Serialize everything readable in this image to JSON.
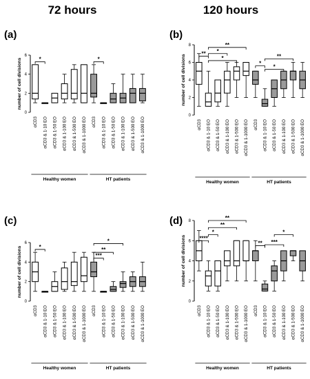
{
  "column_headers": [
    "72 hours",
    "120 hours"
  ],
  "chart_data": [
    {
      "type": "box",
      "panel": "(a)",
      "ylabel": "number of cell divisions",
      "ylim": [
        0,
        6
      ],
      "yticks": [
        0,
        2,
        4,
        6
      ],
      "categories": [
        "αCD3",
        "αCD3 & 1-10 EO",
        "αCD3 & 1-50 EO",
        "αCD3 & 1-100 EO",
        "αCD3 & 1-500 EO",
        "αCD3 & 1-1000 EO",
        "αCD3",
        "αCD3 & 1-10 EO",
        "αCD3 & 1-50 EO",
        "αCD3 & 1-100 EO",
        "αCD3 & 1-500 EO",
        "αCD3 & 1-1000 EO"
      ],
      "groups": [
        {
          "label": "Healthy women",
          "start": 0,
          "end": 5
        },
        {
          "label": "HT patients",
          "start": 6,
          "end": 11
        }
      ],
      "boxes": [
        {
          "min": 1,
          "q1": 1.4,
          "median": 2,
          "q3": 5,
          "max": 5,
          "fill": "white"
        },
        {
          "min": 1,
          "q1": 1,
          "median": 1,
          "q3": 1,
          "max": 1,
          "fill": "white"
        },
        {
          "min": 1,
          "q1": 1,
          "median": 1.5,
          "q3": 2,
          "max": 2,
          "fill": "white"
        },
        {
          "min": 1,
          "q1": 1.4,
          "median": 2,
          "q3": 3,
          "max": 4,
          "fill": "white"
        },
        {
          "min": 1,
          "q1": 1.4,
          "median": 2,
          "q3": 4.5,
          "max": 5,
          "fill": "white"
        },
        {
          "min": 1,
          "q1": 1,
          "median": 2,
          "q3": 5,
          "max": 5,
          "fill": "white"
        },
        {
          "min": 1,
          "q1": 1.6,
          "median": 2,
          "q3": 4,
          "max": 5,
          "fill": "gray"
        },
        {
          "min": 1,
          "q1": 1,
          "median": 1,
          "q3": 1,
          "max": 1,
          "fill": "gray"
        },
        {
          "min": 1,
          "q1": 1,
          "median": 1.4,
          "q3": 2,
          "max": 3,
          "fill": "gray"
        },
        {
          "min": 1,
          "q1": 1,
          "median": 1.5,
          "q3": 2,
          "max": 4,
          "fill": "gray"
        },
        {
          "min": 1,
          "q1": 1,
          "median": 2,
          "q3": 2.5,
          "max": 4,
          "fill": "gray"
        },
        {
          "min": 1,
          "q1": 1.2,
          "median": 2,
          "q3": 2.5,
          "max": 4,
          "fill": "gray"
        }
      ],
      "significance": [
        {
          "from": 0,
          "to": 1,
          "label": "*",
          "level": 5.3
        },
        {
          "from": 6,
          "to": 7,
          "label": "*",
          "level": 5.3
        }
      ]
    },
    {
      "type": "box",
      "panel": "(b)",
      "ylabel": "number of cell divisions",
      "ylim": [
        0,
        8
      ],
      "yticks": [
        0,
        2,
        4,
        6,
        8
      ],
      "categories": [
        "αCD3",
        "αCD3 & 1-10 EO",
        "αCD3 & 1-50 EO",
        "αCD3 & 1-100 EO",
        "αCD3 & 1-500 EO",
        "αCD3 & 1-1000 EO",
        "αCD3",
        "αCD3 & 1-10 EO",
        "αCD3 & 1-50 EO",
        "αCD3 & 1-100 EO",
        "αCD3 & 1-500 EO",
        "αCD3 & 1-1000 EO"
      ],
      "groups": [
        {
          "label": "Healthy women",
          "start": 0,
          "end": 5
        },
        {
          "label": "HT patients",
          "start": 6,
          "end": 11
        }
      ],
      "boxes": [
        {
          "min": 1,
          "q1": 3.5,
          "median": 5,
          "q3": 6,
          "max": 7,
          "fill": "white"
        },
        {
          "min": 1,
          "q1": 1,
          "median": 1.5,
          "q3": 2.5,
          "max": 5,
          "fill": "white"
        },
        {
          "min": 1,
          "q1": 1.5,
          "median": 2.5,
          "q3": 4,
          "max": 4,
          "fill": "white"
        },
        {
          "min": 1,
          "q1": 2.5,
          "median": 4,
          "q3": 5,
          "max": 6,
          "fill": "white"
        },
        {
          "min": 2,
          "q1": 4,
          "median": 5,
          "q3": 5.5,
          "max": 6,
          "fill": "white"
        },
        {
          "min": 2,
          "q1": 4.5,
          "median": 5,
          "q3": 6,
          "max": 6,
          "fill": "white"
        },
        {
          "min": 2,
          "q1": 3.5,
          "median": 4,
          "q3": 5,
          "max": 5,
          "fill": "gray"
        },
        {
          "min": 1,
          "q1": 1,
          "median": 1.3,
          "q3": 1.8,
          "max": 3,
          "fill": "gray"
        },
        {
          "min": 1,
          "q1": 2,
          "median": 3,
          "q3": 4,
          "max": 4,
          "fill": "gray"
        },
        {
          "min": 2,
          "q1": 3,
          "median": 4,
          "q3": 5,
          "max": 5,
          "fill": "gray"
        },
        {
          "min": 2,
          "q1": 4,
          "median": 5,
          "q3": 5,
          "max": 6,
          "fill": "gray"
        },
        {
          "min": 2,
          "q1": 3,
          "median": 4,
          "q3": 5,
          "max": 6,
          "fill": "gray"
        }
      ],
      "significance": [
        {
          "from": 0,
          "to": 1,
          "label": "**",
          "level": 6.7
        },
        {
          "from": 1,
          "to": 3,
          "label": "*",
          "level": 7.0
        },
        {
          "from": 1,
          "to": 4,
          "label": "*",
          "level": 6.2
        },
        {
          "from": 1,
          "to": 5,
          "label": "**",
          "level": 7.7
        },
        {
          "from": 6,
          "to": 7,
          "label": "*",
          "level": 5.6
        },
        {
          "from": 7,
          "to": 9,
          "label": "*",
          "level": 5.2
        },
        {
          "from": 7,
          "to": 10,
          "label": "**",
          "level": 6.4
        }
      ]
    },
    {
      "type": "box",
      "panel": "(c)",
      "ylabel": "number of cell divisions",
      "ylim": [
        0,
        6
      ],
      "yticks": [
        0,
        2,
        4,
        6
      ],
      "categories": [
        "αCD3",
        "αCD3 & 1-10 EO",
        "αCD3 & 1-50 EO",
        "αCD3 & 1-100 EO",
        "αCD3 & 1-500 EO",
        "αCD3 & 1-1000 EO",
        "αCD3",
        "αCD3 & 1-10 EO",
        "αCD3 & 1-50 EO",
        "αCD3 & 1-100 EO",
        "αCD3 & 1-500 EO",
        "αCD3 & 1-1000 EO"
      ],
      "groups": [
        {
          "label": "Healthy women",
          "start": 0,
          "end": 5
        },
        {
          "label": "HT patients",
          "start": 6,
          "end": 11
        }
      ],
      "boxes": [
        {
          "min": 1,
          "q1": 2,
          "median": 3,
          "q3": 4,
          "max": 5,
          "fill": "white"
        },
        {
          "min": 1,
          "q1": 1,
          "median": 1,
          "q3": 1,
          "max": 1,
          "fill": "white"
        },
        {
          "min": 1,
          "q1": 1,
          "median": 1.5,
          "q3": 2,
          "max": 3,
          "fill": "white"
        },
        {
          "min": 1,
          "q1": 1.2,
          "median": 2,
          "q3": 3.4,
          "max": 4,
          "fill": "white"
        },
        {
          "min": 1,
          "q1": 1.6,
          "median": 2,
          "q3": 4,
          "max": 5,
          "fill": "white"
        },
        {
          "min": 1,
          "q1": 2,
          "median": 2.6,
          "q3": 4.5,
          "max": 5,
          "fill": "white"
        },
        {
          "min": 1,
          "q1": 2.5,
          "median": 3,
          "q3": 4,
          "max": 5,
          "fill": "gray"
        },
        {
          "min": 1,
          "q1": 1,
          "median": 1,
          "q3": 1,
          "max": 1,
          "fill": "gray"
        },
        {
          "min": 1,
          "q1": 1,
          "median": 1.2,
          "q3": 1.5,
          "max": 2,
          "fill": "gray"
        },
        {
          "min": 1,
          "q1": 1.4,
          "median": 1.8,
          "q3": 2,
          "max": 3,
          "fill": "gray"
        },
        {
          "min": 1,
          "q1": 1.5,
          "median": 2,
          "q3": 2.5,
          "max": 3,
          "fill": "gray"
        },
        {
          "min": 1,
          "q1": 1.5,
          "median": 2,
          "q3": 2.5,
          "max": 4,
          "fill": "gray"
        }
      ],
      "significance": [
        {
          "from": 0,
          "to": 1,
          "label": "*",
          "level": 5.3
        },
        {
          "from": 6,
          "to": 7,
          "label": "***",
          "level": 4.4
        },
        {
          "from": 6,
          "to": 8,
          "label": "**",
          "level": 5.0
        },
        {
          "from": 6,
          "to": 9,
          "label": "*",
          "level": 5.9
        }
      ]
    },
    {
      "type": "box",
      "panel": "(d)",
      "ylabel": "number of cell divisions",
      "ylim": [
        0,
        8
      ],
      "yticks": [
        0,
        2,
        4,
        6,
        8
      ],
      "categories": [
        "αCD3",
        "αCD3 & 1-10 EO",
        "αCD3 & 1-50 EO",
        "αCD3 & 1-100 EO",
        "αCD3 & 1-500 EO",
        "αCD3 & 1-1000 EO",
        "αCD3",
        "αCD3 & 1-10 EO",
        "αCD3 & 1-50 EO",
        "αCD3 & 1-100 EO",
        "αCD3 & 1-500 EO",
        "αCD3 & 1-1000 EO"
      ],
      "groups": [
        {
          "label": "Healthy women",
          "start": 0,
          "end": 5
        },
        {
          "label": "HT patients",
          "start": 6,
          "end": 11
        }
      ],
      "boxes": [
        {
          "min": 3,
          "q1": 4,
          "median": 5,
          "q3": 6,
          "max": 7,
          "fill": "white"
        },
        {
          "min": 1,
          "q1": 1.5,
          "median": 2.5,
          "q3": 3,
          "max": 4,
          "fill": "white"
        },
        {
          "min": 1,
          "q1": 1.5,
          "median": 3,
          "q3": 4,
          "max": 4,
          "fill": "white"
        },
        {
          "min": 2,
          "q1": 3.5,
          "median": 4,
          "q3": 5,
          "max": 5,
          "fill": "white"
        },
        {
          "min": 2,
          "q1": 3.5,
          "median": 4,
          "q3": 6,
          "max": 6,
          "fill": "white"
        },
        {
          "min": 2,
          "q1": 4,
          "median": 4,
          "q3": 6,
          "max": 6,
          "fill": "white"
        },
        {
          "min": 2,
          "q1": 4,
          "median": 5,
          "q3": 5,
          "max": 6,
          "fill": "gray"
        },
        {
          "min": 1,
          "q1": 1,
          "median": 1.2,
          "q3": 1.7,
          "max": 2,
          "fill": "gray"
        },
        {
          "min": 1,
          "q1": 2,
          "median": 3,
          "q3": 3.5,
          "max": 4,
          "fill": "gray"
        },
        {
          "min": 2,
          "q1": 3,
          "median": 4,
          "q3": 5,
          "max": 5,
          "fill": "gray"
        },
        {
          "min": 4,
          "q1": 4.5,
          "median": 5,
          "q3": 5,
          "max": 5,
          "fill": "gray"
        },
        {
          "min": 2,
          "q1": 3,
          "median": 4,
          "q3": 5,
          "max": 5,
          "fill": "gray"
        }
      ],
      "significance": [
        {
          "from": 0,
          "to": 1,
          "label": "****",
          "level": 6.0
        },
        {
          "from": 1,
          "to": 2,
          "label": "*",
          "level": 6.6
        },
        {
          "from": 1,
          "to": 4,
          "label": "**",
          "level": 7.3
        },
        {
          "from": 1,
          "to": 5,
          "label": "**",
          "level": 8.0
        },
        {
          "from": 6,
          "to": 7,
          "label": "**",
          "level": 5.5
        },
        {
          "from": 7,
          "to": 9,
          "label": "***",
          "level": 5.6
        },
        {
          "from": 8,
          "to": 10,
          "label": "*",
          "level": 6.6
        }
      ]
    }
  ]
}
